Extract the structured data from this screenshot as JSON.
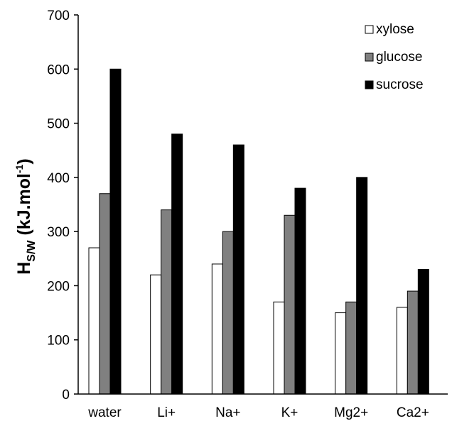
{
  "chart_data": {
    "type": "bar",
    "categories": [
      "water",
      "Li+",
      "Na+",
      "K+",
      "Mg2+",
      "Ca2+"
    ],
    "series": [
      {
        "name": "xylose",
        "values": [
          270,
          220,
          240,
          170,
          150,
          160
        ]
      },
      {
        "name": "glucose",
        "values": [
          370,
          340,
          300,
          330,
          170,
          190
        ]
      },
      {
        "name": "sucrose",
        "values": [
          600,
          480,
          460,
          380,
          400,
          230
        ]
      }
    ],
    "ylabel": {
      "main": "H",
      "sub": "S/W",
      "unit_pre": " (kJ.mol",
      "unit_sup": "-1",
      "unit_post": ")"
    },
    "xlabel": "",
    "ylim": [
      0,
      700
    ],
    "yticks": [
      0,
      100,
      200,
      300,
      400,
      500,
      600,
      700
    ],
    "grid": false,
    "legend_position": "top-right",
    "colors": {
      "xylose": "#ffffff",
      "glucose": "#808080",
      "sucrose": "#000000",
      "edge": "#000000"
    }
  }
}
